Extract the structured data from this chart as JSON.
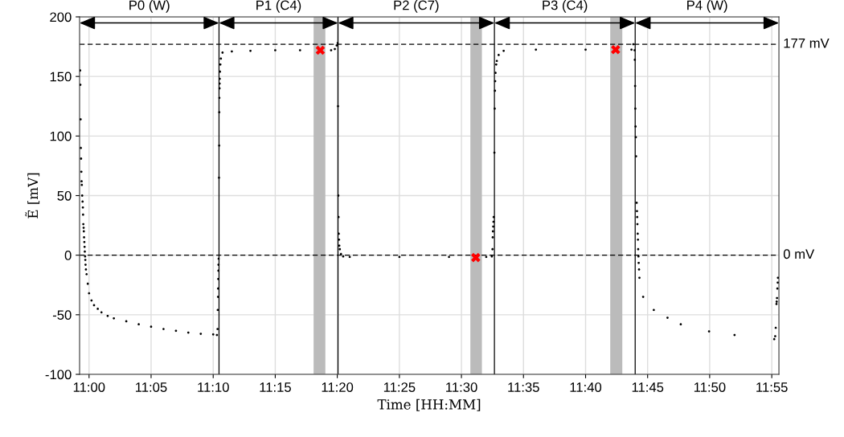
{
  "chart_data": {
    "type": "scatter",
    "xlabel": "Time [HH:MM]",
    "ylabel": "Ẽ [mV]",
    "xlim": [
      10.9873,
      11.9263
    ],
    "ylim": [
      -100,
      200
    ],
    "xticks": [
      {
        "value": 11.0,
        "label": "11:00"
      },
      {
        "value": 11.0833,
        "label": "11:05"
      },
      {
        "value": 11.1667,
        "label": "11:10"
      },
      {
        "value": 11.25,
        "label": "11:15"
      },
      {
        "value": 11.3333,
        "label": "11:20"
      },
      {
        "value": 11.4167,
        "label": "11:25"
      },
      {
        "value": 11.5,
        "label": "11:30"
      },
      {
        "value": 11.5833,
        "label": "11:35"
      },
      {
        "value": 11.6667,
        "label": "11:40"
      },
      {
        "value": 11.75,
        "label": "11:45"
      },
      {
        "value": 11.8333,
        "label": "11:50"
      },
      {
        "value": 11.9167,
        "label": "11:55"
      }
    ],
    "yticks": [
      -100,
      -50,
      0,
      50,
      100,
      150,
      200
    ],
    "grid": true,
    "annotations": [
      "P0 (W)",
      "P1 (C4)",
      "P2 (C7)",
      "P3 (C4)",
      "P4 (W)"
    ],
    "series": [
      {
        "color": "#000000",
        "marker": "circle",
        "x": [
          10.988,
          10.9883,
          10.9887,
          10.989,
          10.9893,
          10.9897,
          10.99,
          10.9903,
          10.9908,
          10.9913,
          10.9917,
          10.992,
          10.9923,
          10.9927,
          10.993,
          10.9933,
          10.9937,
          10.994,
          10.9943,
          10.9947,
          10.995,
          10.9953,
          10.9958,
          10.9967,
          10.9983,
          11.0,
          11.0033,
          11.0067,
          11.0117,
          11.0167,
          11.025,
          11.0333,
          11.05,
          11.0667,
          11.0833,
          11.1,
          11.1167,
          11.1333,
          11.15,
          11.1667,
          11.1717,
          11.1725,
          11.1728,
          11.1732,
          11.1733,
          11.1735,
          11.1737,
          11.1738,
          11.174,
          11.1745,
          11.1747,
          11.1748,
          11.175,
          11.1752,
          11.1753,
          11.1755,
          11.1758,
          11.1763,
          11.177,
          11.1792,
          11.1917,
          11.2167,
          11.25,
          11.2833,
          11.325,
          11.33,
          11.3325,
          11.3338,
          11.3343,
          11.3347,
          11.335,
          11.3353,
          11.3357,
          11.336,
          11.3367,
          11.3383,
          11.3412,
          11.35,
          11.4167,
          11.4833,
          11.5333,
          11.5408,
          11.5417,
          11.542,
          11.5423,
          11.5427,
          11.543,
          11.5433,
          11.5443,
          11.5447,
          11.545,
          11.5453,
          11.5458,
          11.5467,
          11.5475,
          11.55,
          11.5567,
          11.6,
          11.6667,
          11.7283,
          11.7308,
          11.7325,
          11.7328,
          11.7332,
          11.7335,
          11.7338,
          11.7342,
          11.7345,
          11.7353,
          11.7357,
          11.736,
          11.7363,
          11.7367,
          11.737,
          11.7373,
          11.7377,
          11.738,
          11.7385,
          11.739,
          11.744,
          11.7583,
          11.7767,
          11.7945,
          11.8325,
          11.8667,
          11.92,
          11.9213,
          11.922,
          11.923,
          11.9233,
          11.9237,
          11.9242,
          11.9247,
          11.925
        ],
        "values": [
          155,
          143,
          114,
          90,
          81,
          70,
          62,
          59,
          50,
          45,
          40,
          34,
          26,
          23,
          20,
          15,
          11,
          7,
          3,
          -1,
          -4,
          -8,
          -12,
          -16,
          -24,
          -32,
          -38,
          -42,
          -45,
          -48,
          -51,
          -53,
          -55.5,
          -58,
          -60,
          -62,
          -63.5,
          -65,
          -66,
          -66.5,
          -67,
          -62,
          -46,
          -35,
          -28,
          -20,
          -13,
          -8,
          -3,
          65,
          92,
          120,
          132,
          140,
          144,
          148,
          154,
          160,
          165,
          170,
          171,
          171.5,
          172,
          172,
          172,
          173,
          176,
          178,
          125,
          50,
          32,
          18,
          13,
          8,
          5,
          1,
          -1,
          -1.5,
          -1.5,
          -1.5,
          -1.5,
          -1,
          5,
          15,
          20,
          24,
          28,
          32,
          86,
          123,
          138,
          146,
          153,
          160,
          163,
          168,
          171.5,
          172.5,
          172.5,
          172.5,
          177,
          172,
          164,
          142,
          123,
          108,
          99,
          83,
          44,
          37,
          32,
          26,
          18,
          13,
          5,
          -1,
          -6.5,
          -12,
          -19,
          -35,
          -46,
          -52.5,
          -58,
          -64,
          -67,
          -70.5,
          -68,
          -61,
          -41,
          -39,
          -36,
          -28,
          -23,
          -19
        ]
      },
      {
        "color": "#ff0000",
        "marker": "cross",
        "x": [
          11.3105,
          11.5192,
          11.707
        ],
        "values": [
          172,
          -2,
          172.5
        ]
      }
    ],
    "ref_lines": [
      {
        "axis": "y",
        "value": 177,
        "label": "177 mV",
        "color": "#000000",
        "line_style": "dashed"
      },
      {
        "axis": "y",
        "value": 0,
        "label": "0 mV",
        "color": "#000000",
        "line_style": "dashed"
      },
      {
        "axis": "x",
        "value": 11.1745,
        "color": "#000000",
        "line_style": "solid"
      },
      {
        "axis": "x",
        "value": 11.3343,
        "color": "#000000",
        "line_style": "solid"
      },
      {
        "axis": "x",
        "value": 11.5443,
        "color": "#000000",
        "line_style": "solid"
      },
      {
        "axis": "x",
        "value": 11.7333,
        "color": "#000000",
        "line_style": "solid"
      }
    ],
    "bands": [
      {
        "axis": "x",
        "from": 11.3015,
        "to": 11.3173,
        "color": "#bbbbbb"
      },
      {
        "axis": "x",
        "from": 11.512,
        "to": 11.5275,
        "color": "#bbbbbb"
      },
      {
        "axis": "x",
        "from": 11.6998,
        "to": 11.716,
        "color": "#bbbbbb"
      }
    ]
  }
}
